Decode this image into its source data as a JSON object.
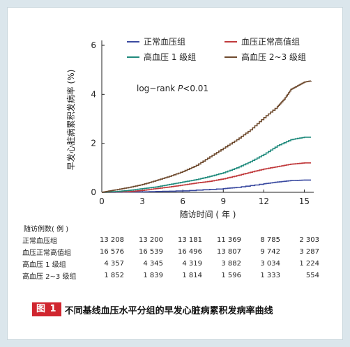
{
  "caption": {
    "tag": "图 1",
    "text": "不同基线血压水平分组的早发心脏病累积发病率曲线"
  },
  "chart_data": {
    "type": "line",
    "xlabel": "随访时间 ( 年 )",
    "ylabel": "早发心脏病累积发病率 (%)",
    "xlim": [
      0,
      15.7
    ],
    "ylim": [
      0,
      6.2
    ],
    "xticks": [
      "0",
      "3",
      "6",
      "9",
      "12",
      "15"
    ],
    "yticks": [
      "0",
      "2",
      "4",
      "6"
    ],
    "annotation": "log−rank P<0.01",
    "legend_position": "top",
    "series": [
      {
        "name": "正常血压组",
        "color": "#3a4aa0",
        "points": [
          [
            0,
            0
          ],
          [
            3,
            0.02
          ],
          [
            6,
            0.06
          ],
          [
            9,
            0.15
          ],
          [
            10,
            0.2
          ],
          [
            12,
            0.35
          ],
          [
            13,
            0.42
          ],
          [
            14,
            0.48
          ],
          [
            15,
            0.5
          ],
          [
            15.5,
            0.5
          ]
        ]
      },
      {
        "name": "血压正常高值组",
        "color": "#c0393b",
        "points": [
          [
            0,
            0
          ],
          [
            2,
            0.03
          ],
          [
            3,
            0.08
          ],
          [
            4,
            0.15
          ],
          [
            5,
            0.22
          ],
          [
            6,
            0.3
          ],
          [
            7,
            0.38
          ],
          [
            8,
            0.45
          ],
          [
            9,
            0.55
          ],
          [
            10,
            0.68
          ],
          [
            11,
            0.82
          ],
          [
            12,
            0.95
          ],
          [
            13,
            1.05
          ],
          [
            14,
            1.15
          ],
          [
            15,
            1.2
          ],
          [
            15.5,
            1.2
          ]
        ]
      },
      {
        "name": "高血压 1 级组",
        "color": "#1f8a7c",
        "points": [
          [
            0,
            0
          ],
          [
            1,
            0.03
          ],
          [
            2,
            0.08
          ],
          [
            3,
            0.15
          ],
          [
            4,
            0.22
          ],
          [
            5,
            0.32
          ],
          [
            6,
            0.42
          ],
          [
            7,
            0.52
          ],
          [
            8,
            0.65
          ],
          [
            9,
            0.8
          ],
          [
            10,
            1.0
          ],
          [
            11,
            1.25
          ],
          [
            12,
            1.55
          ],
          [
            13,
            1.9
          ],
          [
            14,
            2.15
          ],
          [
            15,
            2.25
          ],
          [
            15.5,
            2.25
          ]
        ]
      },
      {
        "name": "高血压 2~3 级组",
        "color": "#6e4a2e",
        "points": [
          [
            0,
            0
          ],
          [
            0.5,
            0.05
          ],
          [
            1,
            0.1
          ],
          [
            2,
            0.2
          ],
          [
            3,
            0.32
          ],
          [
            4,
            0.48
          ],
          [
            5,
            0.65
          ],
          [
            6,
            0.85
          ],
          [
            7,
            1.1
          ],
          [
            8,
            1.45
          ],
          [
            9,
            1.8
          ],
          [
            10,
            2.15
          ],
          [
            11,
            2.55
          ],
          [
            12,
            3.05
          ],
          [
            13,
            3.5
          ],
          [
            13.5,
            3.8
          ],
          [
            14,
            4.2
          ],
          [
            14.5,
            4.35
          ],
          [
            15,
            4.5
          ],
          [
            15.5,
            4.55
          ]
        ]
      }
    ]
  },
  "risk_table": {
    "title": "随访例数( 例 )",
    "rows": [
      {
        "label": "正常血压组",
        "values": [
          "13 208",
          "13 200",
          "13 181",
          "11 369",
          "8 785",
          "2 303"
        ]
      },
      {
        "label": "血压正常高值组",
        "values": [
          "16 576",
          "16 539",
          "16 496",
          "13 807",
          "9 742",
          "3 287"
        ]
      },
      {
        "label": "高血压 1 级组",
        "values": [
          "4 357",
          "4 345",
          "4 319",
          "3 882",
          "3 034",
          "1 224"
        ]
      },
      {
        "label": "高血压 2~3 级组",
        "values": [
          "1 852",
          "1 839",
          "1 814",
          "1 596",
          "1 333",
          "554"
        ]
      }
    ]
  }
}
